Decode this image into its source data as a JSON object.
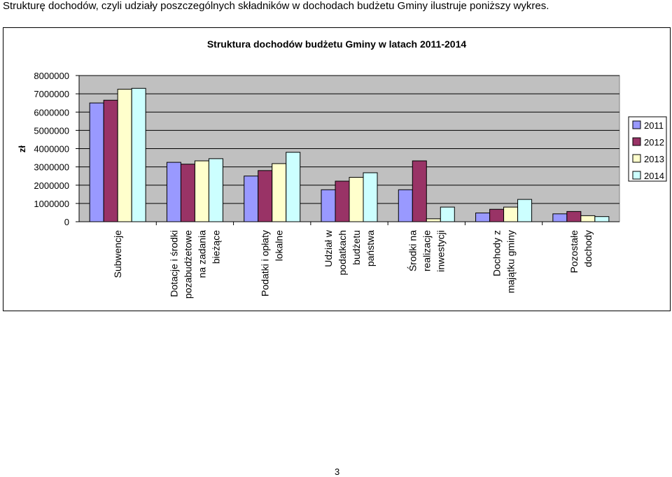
{
  "intro_text": "Strukturę dochodów, czyli udziały poszczególnych składników w dochodach  budżetu Gminy ilustruje poniższy wykres.",
  "page_number": "3",
  "colors": {
    "2011": "#9999ff",
    "2012": "#993366",
    "2013": "#ffffcc",
    "2014": "#ccffff",
    "plot_background": "#c0c0c0",
    "gridline": "#000000"
  },
  "chart_data": {
    "type": "bar",
    "title": "Struktura dochodów budżetu Gminy w latach 2011-2014",
    "ylabel": "zł",
    "xlabel": "",
    "ylim": [
      0,
      8000000
    ],
    "yticks": [
      0,
      1000000,
      2000000,
      3000000,
      4000000,
      5000000,
      6000000,
      7000000,
      8000000
    ],
    "grid": true,
    "legend_position": "right",
    "categories": [
      [
        "Subwencje"
      ],
      [
        "Dotacje i środki",
        "pozabudżetowe",
        "na zadania",
        "bieżące"
      ],
      [
        "Podatki i opłaty",
        "lokalne"
      ],
      [
        "Udział w",
        "podatkach",
        "budżetu",
        "państwa"
      ],
      [
        "Środki na",
        "realizacje",
        "inwestycji"
      ],
      [
        "Dochody z",
        "majątku gminy"
      ],
      [
        "Pozostałe",
        "dochody"
      ]
    ],
    "series": [
      {
        "name": "2011",
        "values": [
          6500000,
          3250000,
          2500000,
          1750000,
          1750000,
          480000,
          430000
        ]
      },
      {
        "name": "2012",
        "values": [
          6650000,
          3150000,
          2800000,
          2220000,
          3330000,
          680000,
          560000
        ]
      },
      {
        "name": "2013",
        "values": [
          7250000,
          3330000,
          3180000,
          2430000,
          160000,
          800000,
          330000
        ]
      },
      {
        "name": "2014",
        "values": [
          7300000,
          3450000,
          3800000,
          2680000,
          800000,
          1220000,
          280000
        ]
      }
    ]
  }
}
